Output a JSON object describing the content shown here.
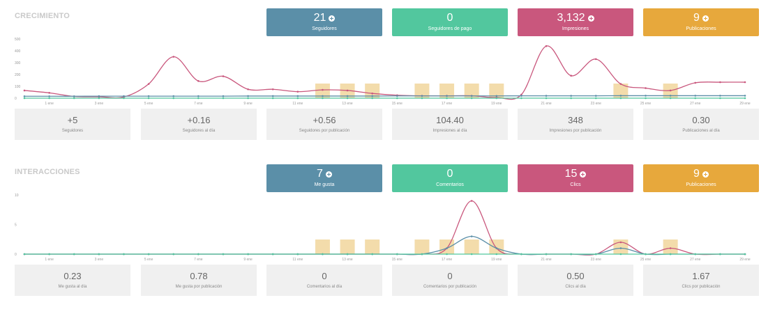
{
  "sections": [
    {
      "title": "CRECIMIENTO",
      "kpis": [
        {
          "value": "21",
          "label": "Seguidores",
          "plus": true,
          "color": "#5b8fa8"
        },
        {
          "value": "0",
          "label": "Seguidores de pago",
          "plus": false,
          "color": "#52c79e"
        },
        {
          "value": "3,132",
          "label": "Impresiones",
          "plus": true,
          "color": "#c9577d"
        },
        {
          "value": "9",
          "label": "Publicaciones",
          "plus": true,
          "color": "#e7a83c"
        }
      ],
      "stats": [
        {
          "value": "+5",
          "label": "Seguidores"
        },
        {
          "value": "+0.16",
          "label": "Seguidores al día"
        },
        {
          "value": "+0.56",
          "label": "Seguidores por publicación"
        },
        {
          "value": "104.40",
          "label": "Impresiones al día"
        },
        {
          "value": "348",
          "label": "Impresiones por publicación"
        },
        {
          "value": "0.30",
          "label": "Publicaciones al día"
        }
      ]
    },
    {
      "title": "INTERACCIONES",
      "kpis": [
        {
          "value": "7",
          "label": "Me gusta",
          "plus": true,
          "color": "#5b8fa8"
        },
        {
          "value": "0",
          "label": "Comentarios",
          "plus": false,
          "color": "#52c79e"
        },
        {
          "value": "15",
          "label": "Clics",
          "plus": true,
          "color": "#c9577d"
        },
        {
          "value": "9",
          "label": "Publicaciones",
          "plus": true,
          "color": "#e7a83c"
        }
      ],
      "stats": [
        {
          "value": "0.23",
          "label": "Me gusta al día"
        },
        {
          "value": "0.78",
          "label": "Me gusta por publicación"
        },
        {
          "value": "0",
          "label": "Comentarios al día"
        },
        {
          "value": "0",
          "label": "Comentarios por publicación"
        },
        {
          "value": "0.50",
          "label": "Clics al día"
        },
        {
          "value": "1.67",
          "label": "Clics por publicación"
        }
      ]
    }
  ],
  "chart_data": [
    {
      "type": "line",
      "x": [
        1,
        2,
        3,
        4,
        5,
        6,
        7,
        8,
        9,
        10,
        11,
        12,
        13,
        14,
        15,
        16,
        17,
        18,
        19,
        20,
        21,
        22,
        23,
        24,
        25,
        26,
        27,
        28,
        29,
        30
      ],
      "tick_labels": [
        "1 ene",
        "3 ene",
        "5 ene",
        "7 ene",
        "9 ene",
        "11 ene",
        "13 ene",
        "15 ene",
        "17 ene",
        "19 ene",
        "21 ene",
        "23 ene",
        "25 ene",
        "27 ene",
        "29 ene"
      ],
      "ylim": [
        0,
        500
      ],
      "yticks": [
        "0",
        "100",
        "200",
        "300",
        "400",
        "500"
      ],
      "series": [
        {
          "color": "#c9577d",
          "values": [
            65,
            45,
            15,
            12,
            10,
            120,
            350,
            145,
            185,
            75,
            75,
            55,
            70,
            65,
            40,
            25,
            20,
            20,
            20,
            5,
            30,
            440,
            190,
            330,
            120,
            85,
            65,
            130,
            135,
            135
          ]
        },
        {
          "color": "#5b8fa8",
          "values": [
            16,
            16,
            16,
            17,
            17,
            17,
            17,
            17,
            17,
            18,
            18,
            18,
            18,
            18,
            18,
            19,
            19,
            19,
            19,
            19,
            20,
            20,
            20,
            20,
            21,
            21,
            21,
            21,
            21,
            21
          ]
        },
        {
          "color": "#52c79e",
          "values": [
            0,
            0,
            0,
            0,
            0,
            0,
            0,
            0,
            0,
            0,
            0,
            0,
            0,
            0,
            0,
            0,
            0,
            0,
            0,
            0,
            0,
            0,
            0,
            0,
            0,
            0,
            0,
            0,
            0,
            0
          ]
        }
      ],
      "bars": {
        "color": "#f3dcab",
        "values": [
          0,
          0,
          0,
          0,
          0,
          0,
          0,
          0,
          0,
          0,
          0,
          0,
          1,
          1,
          1,
          0,
          1,
          1,
          1,
          1,
          0,
          0,
          0,
          0,
          1,
          0,
          1,
          0,
          0,
          0
        ]
      }
    },
    {
      "type": "line",
      "x": [
        1,
        2,
        3,
        4,
        5,
        6,
        7,
        8,
        9,
        10,
        11,
        12,
        13,
        14,
        15,
        16,
        17,
        18,
        19,
        20,
        21,
        22,
        23,
        24,
        25,
        26,
        27,
        28,
        29,
        30
      ],
      "tick_labels": [
        "1 ene",
        "3 ene",
        "5 ene",
        "7 ene",
        "9 ene",
        "11 ene",
        "13 ene",
        "15 ene",
        "17 ene",
        "19 ene",
        "21 ene",
        "23 ene",
        "25 ene",
        "27 ene",
        "29 ene"
      ],
      "ylim": [
        0,
        10
      ],
      "yticks": [
        "0",
        "5",
        "10"
      ],
      "series": [
        {
          "color": "#c9577d",
          "values": [
            0,
            0,
            0,
            0,
            0,
            0,
            0,
            0,
            0,
            0,
            0,
            0,
            0,
            0,
            0,
            0,
            0,
            1,
            9,
            1,
            0,
            0,
            0,
            0,
            2,
            0,
            1,
            0,
            0,
            0
          ]
        },
        {
          "color": "#5b8fa8",
          "values": [
            0,
            0,
            0,
            0,
            0,
            0,
            0,
            0,
            0,
            0,
            0,
            0,
            0,
            0,
            0,
            0,
            0,
            1,
            3,
            1,
            0,
            0,
            0,
            0,
            1,
            0,
            0,
            0,
            0,
            0
          ]
        },
        {
          "color": "#52c79e",
          "values": [
            0,
            0,
            0,
            0,
            0,
            0,
            0,
            0,
            0,
            0,
            0,
            0,
            0,
            0,
            0,
            0,
            0,
            0,
            0,
            0,
            0,
            0,
            0,
            0,
            0,
            0,
            0,
            0,
            0,
            0
          ]
        }
      ],
      "bars": {
        "color": "#f3dcab",
        "values": [
          0,
          0,
          0,
          0,
          0,
          0,
          0,
          0,
          0,
          0,
          0,
          0,
          1,
          1,
          1,
          0,
          1,
          1,
          1,
          1,
          0,
          0,
          0,
          0,
          1,
          0,
          1,
          0,
          0,
          0
        ]
      }
    }
  ]
}
